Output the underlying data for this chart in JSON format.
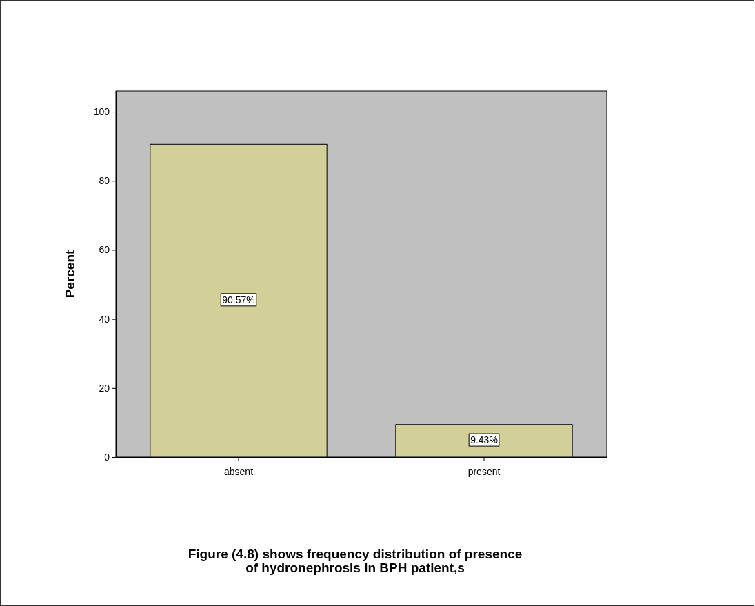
{
  "chart_data": {
    "type": "bar",
    "title": "Figure (4.8) shows frequency distribution of presence\nof hydronephrosis in BPH patient,s",
    "ylabel": "Percent",
    "categories": [
      "absent",
      "present"
    ],
    "values": [
      90.57,
      9.43
    ],
    "value_labels": [
      "90.57%",
      "9.43%"
    ],
    "color": "#d3cf99",
    "ylim": [
      0,
      106
    ],
    "yticks": [
      0,
      20,
      40,
      60,
      80,
      100
    ],
    "grid": false
  }
}
